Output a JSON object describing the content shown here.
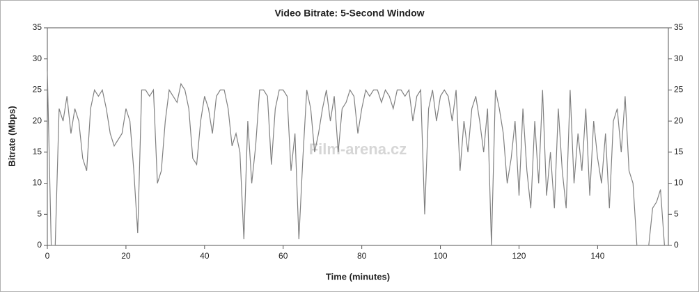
{
  "chart_data": {
    "type": "line",
    "title": "Video Bitrate: 5-Second Window",
    "x_label": "Time (minutes)",
    "y_label": "Bitrate (Mbps)",
    "watermark": "Film-arena.cz",
    "color": "#808080",
    "xlim": [
      0,
      158
    ],
    "xticks": [
      0,
      20,
      40,
      60,
      80,
      100,
      120,
      140
    ],
    "ylim": [
      0,
      35
    ],
    "yticks": [
      0,
      5,
      10,
      15,
      20,
      25,
      30,
      35
    ],
    "y2lim": [
      0,
      35
    ],
    "y2ticks": [
      0,
      5,
      10,
      15,
      20,
      25,
      30,
      35
    ],
    "grid": false,
    "x": [
      0,
      1,
      2,
      3,
      4,
      5,
      6,
      7,
      8,
      9,
      10,
      11,
      12,
      13,
      14,
      15,
      16,
      17,
      18,
      19,
      20,
      21,
      22,
      23,
      24,
      25,
      26,
      27,
      28,
      29,
      30,
      31,
      32,
      33,
      34,
      35,
      36,
      37,
      38,
      39,
      40,
      41,
      42,
      43,
      44,
      45,
      46,
      47,
      48,
      49,
      50,
      51,
      52,
      53,
      54,
      55,
      56,
      57,
      58,
      59,
      60,
      61,
      62,
      63,
      64,
      65,
      66,
      67,
      68,
      69,
      70,
      71,
      72,
      73,
      74,
      75,
      76,
      77,
      78,
      79,
      80,
      81,
      82,
      83,
      84,
      85,
      86,
      87,
      88,
      89,
      90,
      91,
      92,
      93,
      94,
      95,
      96,
      97,
      98,
      99,
      100,
      101,
      102,
      103,
      104,
      105,
      106,
      107,
      108,
      109,
      110,
      111,
      112,
      113,
      114,
      115,
      116,
      117,
      118,
      119,
      120,
      121,
      122,
      123,
      124,
      125,
      126,
      127,
      128,
      129,
      130,
      131,
      132,
      133,
      134,
      135,
      136,
      137,
      138,
      139,
      140,
      141,
      142,
      143,
      144,
      145,
      146,
      147,
      148,
      149,
      150,
      151,
      152,
      153,
      154,
      155,
      156,
      157
    ],
    "values": [
      28,
      0,
      0,
      22,
      20,
      24,
      18,
      22,
      20,
      14,
      12,
      22,
      25,
      24,
      25,
      22,
      18,
      16,
      17,
      18,
      22,
      20,
      12,
      2,
      25,
      25,
      24,
      25,
      10,
      12,
      20,
      25,
      24,
      23,
      26,
      25,
      22,
      14,
      13,
      20,
      24,
      22,
      18,
      24,
      25,
      25,
      22,
      16,
      18,
      15,
      1,
      20,
      10,
      16,
      25,
      25,
      24,
      13,
      22,
      25,
      25,
      24,
      12,
      18,
      1,
      14,
      25,
      22,
      15,
      18,
      22,
      25,
      20,
      24,
      15,
      22,
      23,
      25,
      24,
      18,
      22,
      25,
      24,
      25,
      25,
      23,
      25,
      24,
      22,
      25,
      25,
      24,
      25,
      20,
      24,
      25,
      5,
      22,
      25,
      20,
      24,
      25,
      24,
      20,
      25,
      12,
      20,
      15,
      22,
      24,
      20,
      15,
      22,
      0,
      25,
      22,
      18,
      10,
      14,
      20,
      8,
      22,
      12,
      6,
      20,
      10,
      25,
      8,
      15,
      6,
      22,
      12,
      6,
      25,
      10,
      18,
      12,
      22,
      8,
      20,
      14,
      10,
      18,
      6,
      20,
      22,
      15,
      24,
      12,
      10,
      0,
      0,
      0,
      0,
      6,
      7,
      9,
      0
    ]
  }
}
